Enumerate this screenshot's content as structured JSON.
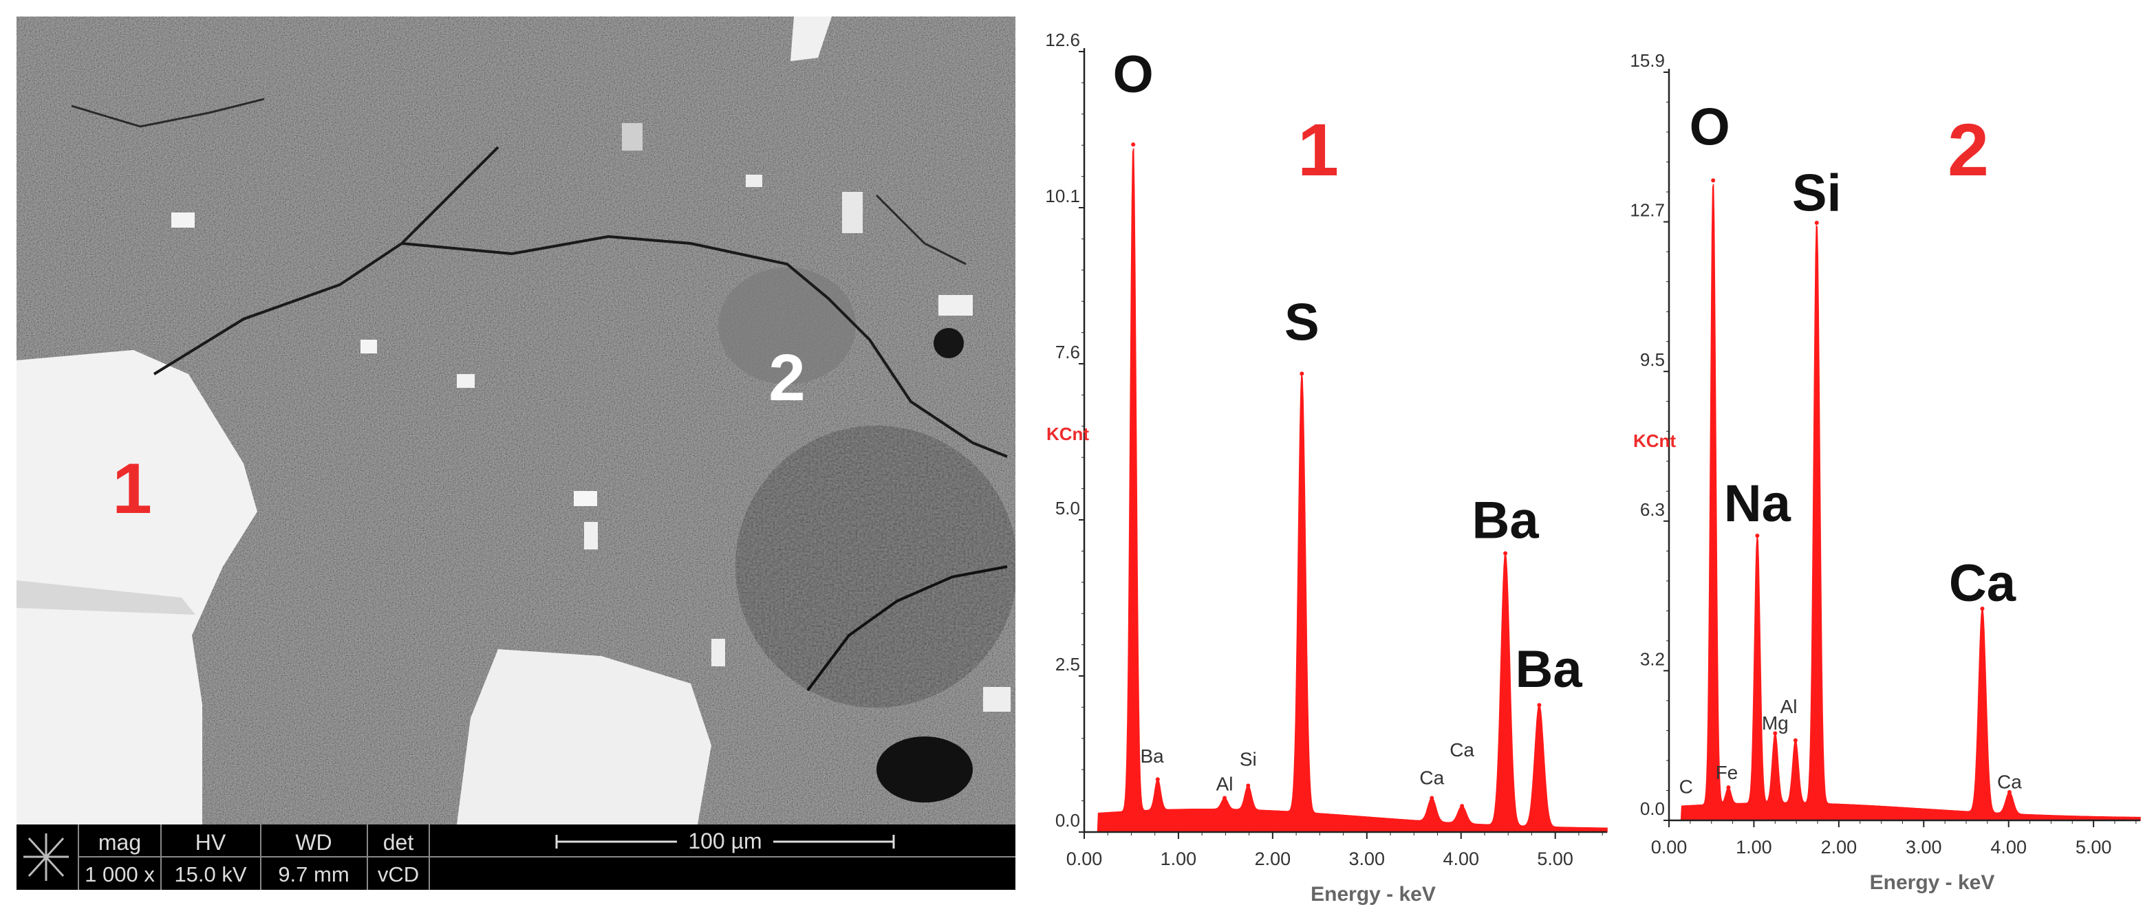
{
  "sem": {
    "labels": [
      "1",
      "2"
    ],
    "databar": {
      "headers": [
        "mag",
        "HV",
        "WD",
        "det"
      ],
      "values": [
        "1 000 x",
        "15.0 kV",
        "9.7 mm",
        "vCD"
      ],
      "scalebar": "100 µm"
    }
  },
  "colors": {
    "spectrum": "#ff1a1a",
    "marker": "#ee2b2b",
    "axis": "#222222"
  },
  "chart_data": [
    {
      "type": "area",
      "title": "1",
      "xlabel": "Energy - keV",
      "ylabel": "KCnt",
      "xlim": [
        0,
        5.55
      ],
      "ylim": [
        0,
        12.6
      ],
      "xticks": [
        "0.00",
        "1.00",
        "2.00",
        "3.00",
        "4.00",
        "5.00"
      ],
      "yticks": [
        "0.0",
        "2.5",
        "5.0",
        "7.6",
        "10.1",
        "12.6"
      ],
      "peaks": [
        {
          "label": "O",
          "energy": 0.52,
          "counts": 11.1
        },
        {
          "label": "Ba",
          "energy": 0.78,
          "counts": 0.85
        },
        {
          "label": "Al",
          "energy": 1.49,
          "counts": 0.55
        },
        {
          "label": "Si",
          "energy": 1.74,
          "counts": 0.75
        },
        {
          "label": "S",
          "energy": 2.31,
          "counts": 7.4
        },
        {
          "label": "Ca",
          "energy": 3.69,
          "counts": 0.55
        },
        {
          "label": "Ca",
          "energy": 4.01,
          "counts": 0.42
        },
        {
          "label": "Ba",
          "energy": 4.47,
          "counts": 4.5
        },
        {
          "label": "Ba",
          "energy": 4.83,
          "counts": 2.05
        }
      ],
      "annotations": [
        {
          "text": "O",
          "x": 0.52,
          "y": 11.9
        },
        {
          "text": "S",
          "x": 2.31,
          "y": 7.9
        },
        {
          "text": "Ba",
          "x": 4.47,
          "y": 4.7
        },
        {
          "text": "Ba",
          "x": 4.93,
          "y": 2.3
        },
        {
          "text": "Ba",
          "x": 0.72,
          "y": 1.1
        },
        {
          "text": "Si",
          "x": 1.74,
          "y": 1.05
        },
        {
          "text": "Al",
          "x": 1.49,
          "y": 0.65
        },
        {
          "text": "Ca",
          "x": 3.69,
          "y": 0.75
        },
        {
          "text": "Ca",
          "x": 4.01,
          "y": 1.2
        }
      ]
    },
    {
      "type": "area",
      "title": "2",
      "xlabel": "Energy - keV",
      "ylabel": "KCnt",
      "xlim": [
        0,
        5.55
      ],
      "ylim": [
        0,
        15.9
      ],
      "xticks": [
        "0.00",
        "1.00",
        "2.00",
        "3.00",
        "4.00",
        "5.00"
      ],
      "yticks": [
        "0.0",
        "3.2",
        "6.3",
        "9.5",
        "12.7",
        "15.9"
      ],
      "peaks": [
        {
          "label": "C",
          "energy": 0.28,
          "counts": 0.15
        },
        {
          "label": "O",
          "energy": 0.52,
          "counts": 13.6
        },
        {
          "label": "Fe",
          "energy": 0.7,
          "counts": 0.7
        },
        {
          "label": "Na",
          "energy": 1.04,
          "counts": 6.05
        },
        {
          "label": "Mg",
          "energy": 1.25,
          "counts": 1.85
        },
        {
          "label": "Al",
          "energy": 1.49,
          "counts": 1.7
        },
        {
          "label": "Si",
          "energy": 1.74,
          "counts": 12.7
        },
        {
          "label": "Ca",
          "energy": 3.69,
          "counts": 4.5
        },
        {
          "label": "Ca",
          "energy": 4.01,
          "counts": 0.6
        }
      ],
      "annotations": [
        {
          "text": "O",
          "x": 0.48,
          "y": 14.3
        },
        {
          "text": "Si",
          "x": 1.74,
          "y": 12.9
        },
        {
          "text": "Na",
          "x": 1.04,
          "y": 6.3
        },
        {
          "text": "Ca",
          "x": 3.69,
          "y": 4.6
        },
        {
          "text": "C",
          "x": 0.2,
          "y": 0.55
        },
        {
          "text": "Fe",
          "x": 0.68,
          "y": 0.85
        },
        {
          "text": "Mg",
          "x": 1.25,
          "y": 1.9
        },
        {
          "text": "Al",
          "x": 1.41,
          "y": 2.25
        },
        {
          "text": "Ca",
          "x": 4.01,
          "y": 0.65
        }
      ]
    }
  ]
}
